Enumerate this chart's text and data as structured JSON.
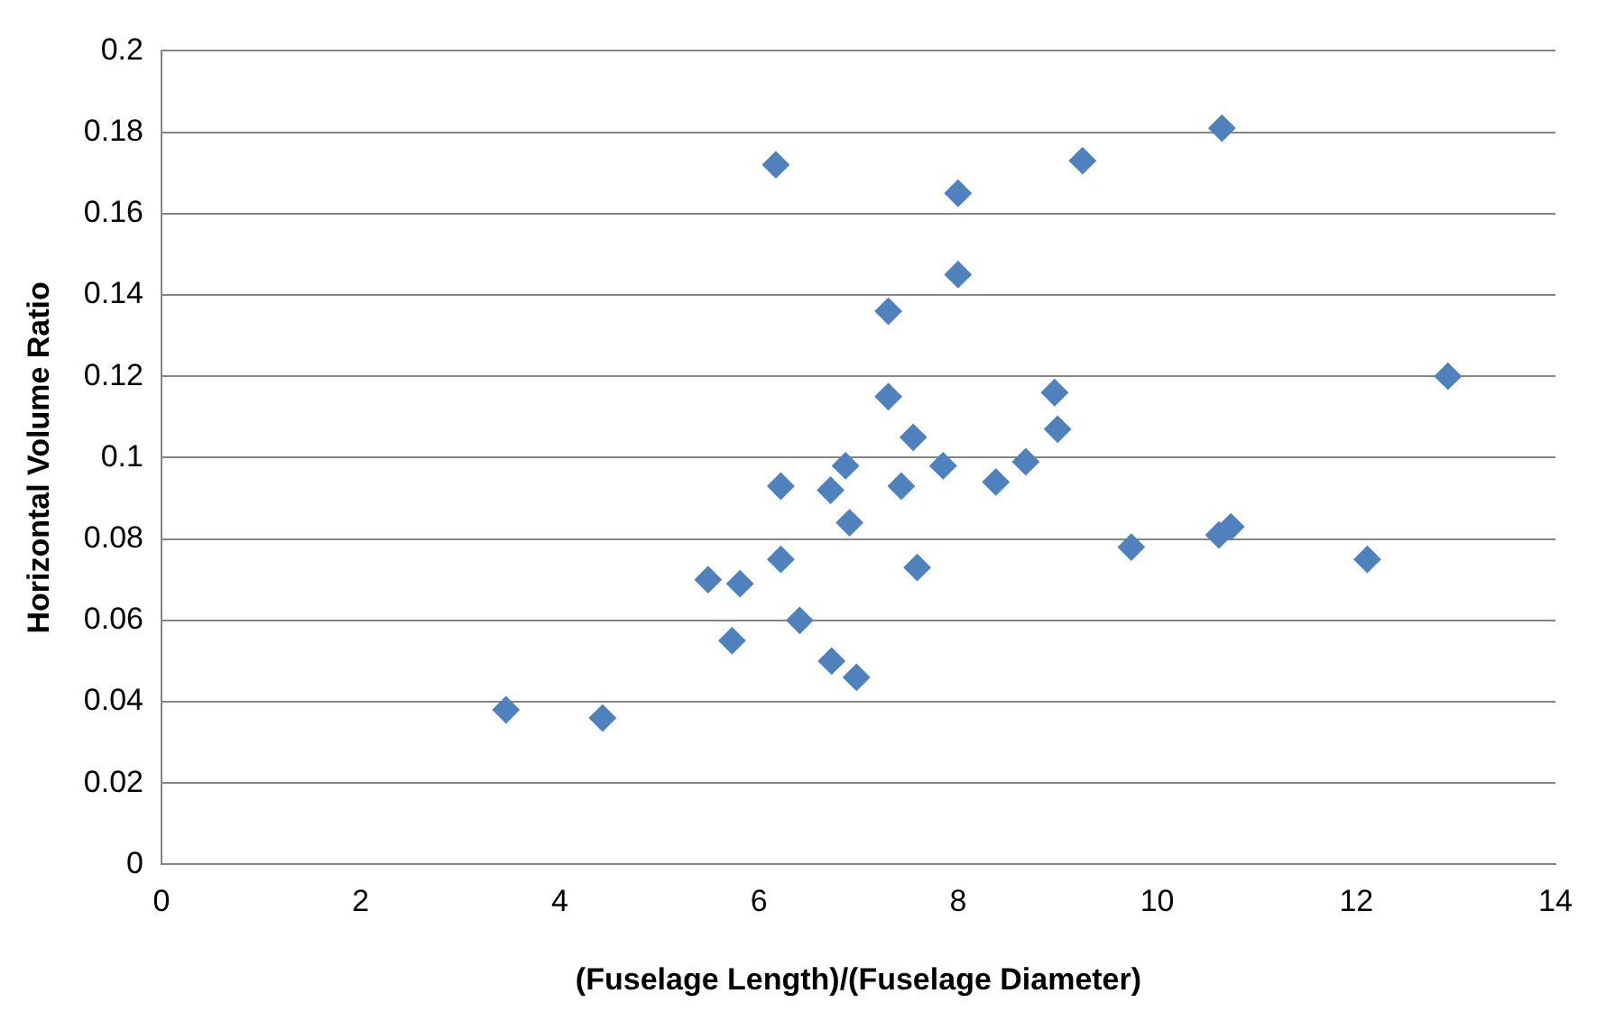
{
  "chart_data": {
    "type": "scatter",
    "xlabel": "(Fuselage Length)/(Fuselage Diameter)",
    "ylabel": "Horizontal Volume Ratio",
    "xlim": [
      0,
      14
    ],
    "xticks": [
      0,
      2,
      4,
      6,
      8,
      10,
      12,
      14
    ],
    "ylim": [
      0,
      0.2
    ],
    "yticks": [
      0,
      0.02,
      0.04,
      0.06,
      0.08,
      0.1,
      0.12,
      0.14,
      0.16,
      0.18,
      0.2
    ],
    "grid": "y",
    "marker": "diamond",
    "legend": false,
    "series": [
      {
        "color": "#4f81bd",
        "x": [
          3.46,
          4.43,
          5.49,
          5.81,
          5.73,
          6.17,
          6.22,
          6.22,
          6.41,
          6.72,
          6.87,
          6.91,
          6.73,
          6.98,
          7.3,
          7.3,
          7.43,
          7.55,
          7.59,
          7.85,
          8.0,
          8.0,
          8.38,
          8.68,
          8.97,
          9.0,
          9.25,
          9.74,
          10.65,
          10.62,
          10.74,
          12.11,
          12.92
        ],
        "values": [
          0.038,
          0.036,
          0.07,
          0.069,
          0.055,
          0.172,
          0.093,
          0.075,
          0.06,
          0.092,
          0.098,
          0.084,
          0.05,
          0.046,
          0.136,
          0.115,
          0.093,
          0.105,
          0.073,
          0.098,
          0.165,
          0.145,
          0.094,
          0.099,
          0.116,
          0.107,
          0.173,
          0.078,
          0.181,
          0.081,
          0.083,
          0.075,
          0.12
        ]
      }
    ]
  }
}
